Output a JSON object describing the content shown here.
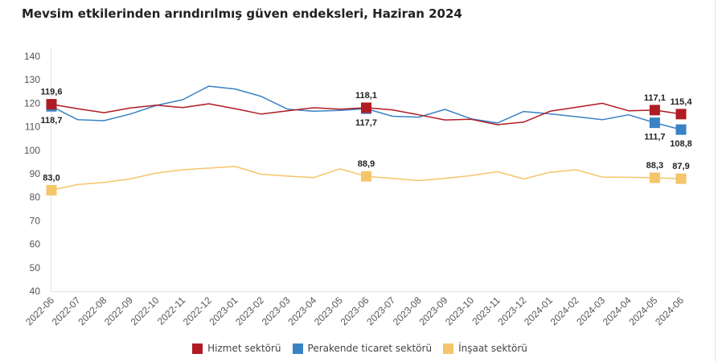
{
  "chart_data": {
    "type": "line",
    "title": "Mevsim etkilerinden arındırılmış güven endeksleri, Haziran 2024",
    "xlabel": "",
    "ylabel": "",
    "ylim": [
      40,
      140
    ],
    "yticks": [
      "40",
      "50",
      "60",
      "70",
      "80",
      "90",
      "100",
      "110",
      "120",
      "130",
      "140"
    ],
    "grid": false,
    "legend_position": "bottom",
    "categories": [
      "2022-06",
      "2022-07",
      "2022-08",
      "2022-09",
      "2022-10",
      "2022-11",
      "2022-12",
      "2023-01",
      "2023-02",
      "2023-03",
      "2023-04",
      "2023-05",
      "2023-06",
      "2023-07",
      "2023-08",
      "2023-09",
      "2023-10",
      "2023-11",
      "2023-12",
      "2024-01",
      "2024-02",
      "2024-03",
      "2024-04",
      "2024-05",
      "2024-06"
    ],
    "series": [
      {
        "name": "Hizmet sektörü",
        "color": "#b01c24",
        "values": [
          119.6,
          117.7,
          116.0,
          118.0,
          119.2,
          118.2,
          119.8,
          117.7,
          115.4,
          116.8,
          118.1,
          117.5,
          118.1,
          117.2,
          115.1,
          112.9,
          113.2,
          110.9,
          112.0,
          116.6,
          118.3,
          120.0,
          116.8,
          117.1,
          115.4
        ],
        "labels": [
          {
            "index": 0,
            "text": "119,6",
            "pos": "above"
          },
          {
            "index": 12,
            "text": "118,1",
            "pos": "above"
          },
          {
            "index": 23,
            "text": "117,1",
            "pos": "above"
          },
          {
            "index": 24,
            "text": "115,4",
            "pos": "above"
          }
        ]
      },
      {
        "name": "Perakende ticaret sektörü",
        "color": "#3a82c4",
        "values": [
          118.7,
          113.0,
          112.6,
          115.4,
          119.1,
          121.5,
          127.3,
          126.1,
          122.9,
          117.5,
          116.6,
          117.0,
          117.7,
          114.5,
          114.1,
          117.4,
          113.4,
          111.6,
          116.5,
          115.5,
          114.3,
          113.0,
          115.1,
          111.7,
          108.8
        ],
        "labels": [
          {
            "index": 0,
            "text": "118,7",
            "pos": "below"
          },
          {
            "index": 12,
            "text": "117,7",
            "pos": "below"
          },
          {
            "index": 23,
            "text": "111,7",
            "pos": "below"
          },
          {
            "index": 24,
            "text": "108,8",
            "pos": "below"
          }
        ]
      },
      {
        "name": "İnşaat sektörü",
        "color": "#f4c56a",
        "values": [
          83.0,
          85.4,
          86.3,
          87.8,
          90.3,
          91.7,
          92.4,
          93.1,
          89.8,
          89.0,
          88.4,
          92.1,
          88.9,
          88.0,
          87.1,
          88.0,
          89.2,
          90.9,
          87.8,
          90.6,
          91.7,
          88.6,
          88.5,
          88.3,
          87.9
        ],
        "labels": [
          {
            "index": 0,
            "text": "83,0",
            "pos": "above"
          },
          {
            "index": 12,
            "text": "88,9",
            "pos": "above"
          },
          {
            "index": 23,
            "text": "88,3",
            "pos": "above"
          },
          {
            "index": 24,
            "text": "87,9",
            "pos": "above"
          }
        ]
      }
    ]
  }
}
